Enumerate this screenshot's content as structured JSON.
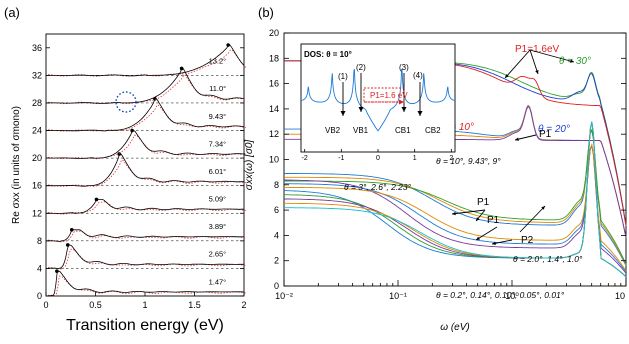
{
  "chart_data": [
    {
      "type": "line",
      "panel_label": "(a)",
      "xlabel": "Transition energy (eV)",
      "ylabel": "Re σxx (in units of σmono)",
      "xlim": [
        0,
        2
      ],
      "ylim": [
        0,
        38
      ],
      "x_ticks": [
        "0",
        "0.5",
        "1",
        "1.5",
        "2"
      ],
      "y_ticks": [
        "0",
        "4",
        "8",
        "12",
        "16",
        "20",
        "24",
        "28",
        "32",
        "36"
      ],
      "grid": "dashed horizontal lines at each curve baseline",
      "series": [
        {
          "name": "1.47°",
          "offset": 0,
          "peak_x": 0.11,
          "peak_y": 3.6
        },
        {
          "name": "2.65°",
          "offset": 4,
          "peak_x": 0.22,
          "peak_y": 7.4
        },
        {
          "name": "3.89°",
          "offset": 8,
          "peak_x": 0.26,
          "peak_y": 9.6
        },
        {
          "name": "5.09°",
          "offset": 12,
          "peak_x": 0.51,
          "peak_y": 14.0
        },
        {
          "name": "6.01°",
          "offset": 16,
          "peak_x": 0.74,
          "peak_y": 20.6
        },
        {
          "name": "7.34°",
          "offset": 20,
          "peak_x": 0.87,
          "peak_y": 24.0
        },
        {
          "name": "9.43°",
          "offset": 24,
          "peak_x": 1.1,
          "peak_y": 28.6
        },
        {
          "name": "11.0°",
          "offset": 28,
          "peak_x": 1.37,
          "peak_y": 33.0
        },
        {
          "name": "13.2°",
          "offset": 32,
          "peak_x": 1.84,
          "peak_y": 36.4
        }
      ],
      "dot_labels": [
        "1.47°",
        "2.65°",
        "3.89°",
        "5.09°",
        "6.01°",
        "7.34°",
        "9.43°",
        "11.0°",
        "13.2°"
      ],
      "colors": {
        "black": "#000000",
        "red_dotted": "#e03030",
        "blue_circle": "#1b45c8"
      }
    },
    {
      "type": "line",
      "panel_label": "(b)",
      "xlabel": "ω (eV)",
      "ylabel": "σxx(ω) [σ0]",
      "xscale": "log",
      "xlim": [
        0.01,
        10
      ],
      "ylim": [
        0,
        20
      ],
      "x_ticks": [
        "10⁻²",
        "10⁻¹",
        "10⁰",
        "10"
      ],
      "y_ticks": [
        "0",
        "2",
        "4",
        "6",
        "8",
        "10",
        "12",
        "14",
        "16",
        "18",
        "20"
      ],
      "groups": [
        {
          "label": "θ = 30°",
          "color": "#2ca02c",
          "low_value": 17.8,
          "peak_x": 5.0,
          "peak_y": 16.8
        },
        {
          "label": "θ = 20°",
          "color": "#1f3fd0",
          "low_value": 17.8,
          "peak_x": 5.0,
          "peak_y": 16.6
        },
        {
          "label": "θ = 10°",
          "color": "#e02020",
          "low_value": 17.8,
          "peak_x": 1.6,
          "peak_y": 15.1
        },
        {
          "label": "θ = 10°, 9.43°, 9°",
          "colors": [
            "#1f7bd8",
            "#e08a00",
            "#7a3aa0"
          ],
          "low_value": 12.4,
          "peak_x": 1.4,
          "peak_y": 14.2
        },
        {
          "label": "θ = 3°, 2.6°, 2.23°",
          "colors": [
            "#1f7bd8",
            "#e08a00",
            "#2ca02c"
          ],
          "low_value": 8.9,
          "peak_x": 0.6,
          "peak_y": 6.0
        },
        {
          "label": "θ = 2.0°, 1.4°, 1.0°",
          "colors": [
            "#7a3aa0",
            "#1f7bd8",
            "#e08a00"
          ],
          "low_value": 8.4,
          "peak_x": 0.35,
          "peak_y": 4.8
        },
        {
          "label": "θ = 0.2°, 0.14°, 0.10°, 0.05°, 0.01°",
          "colors": [
            "#1f7bd8",
            "#2ca02c",
            "#7a3aa0",
            "#e08a00",
            "#17becf"
          ],
          "low_value": 7.6,
          "peak_x": 5.0,
          "peak_y": 14.0
        }
      ],
      "annotations": [
        "P1=1.6eV",
        "P1",
        "P1",
        "P1",
        "P2"
      ],
      "inset": {
        "title": "DOS: θ = 10°",
        "x_ticks": [
          "-2",
          "-1",
          "0",
          "1",
          "2"
        ],
        "labels": [
          "VB2",
          "VB1",
          "CB1",
          "CB2"
        ],
        "arrow_labels": [
          "(1)",
          "(2)",
          "(3)",
          "(4)"
        ],
        "transition": "P1=1.6 eV"
      }
    }
  ]
}
